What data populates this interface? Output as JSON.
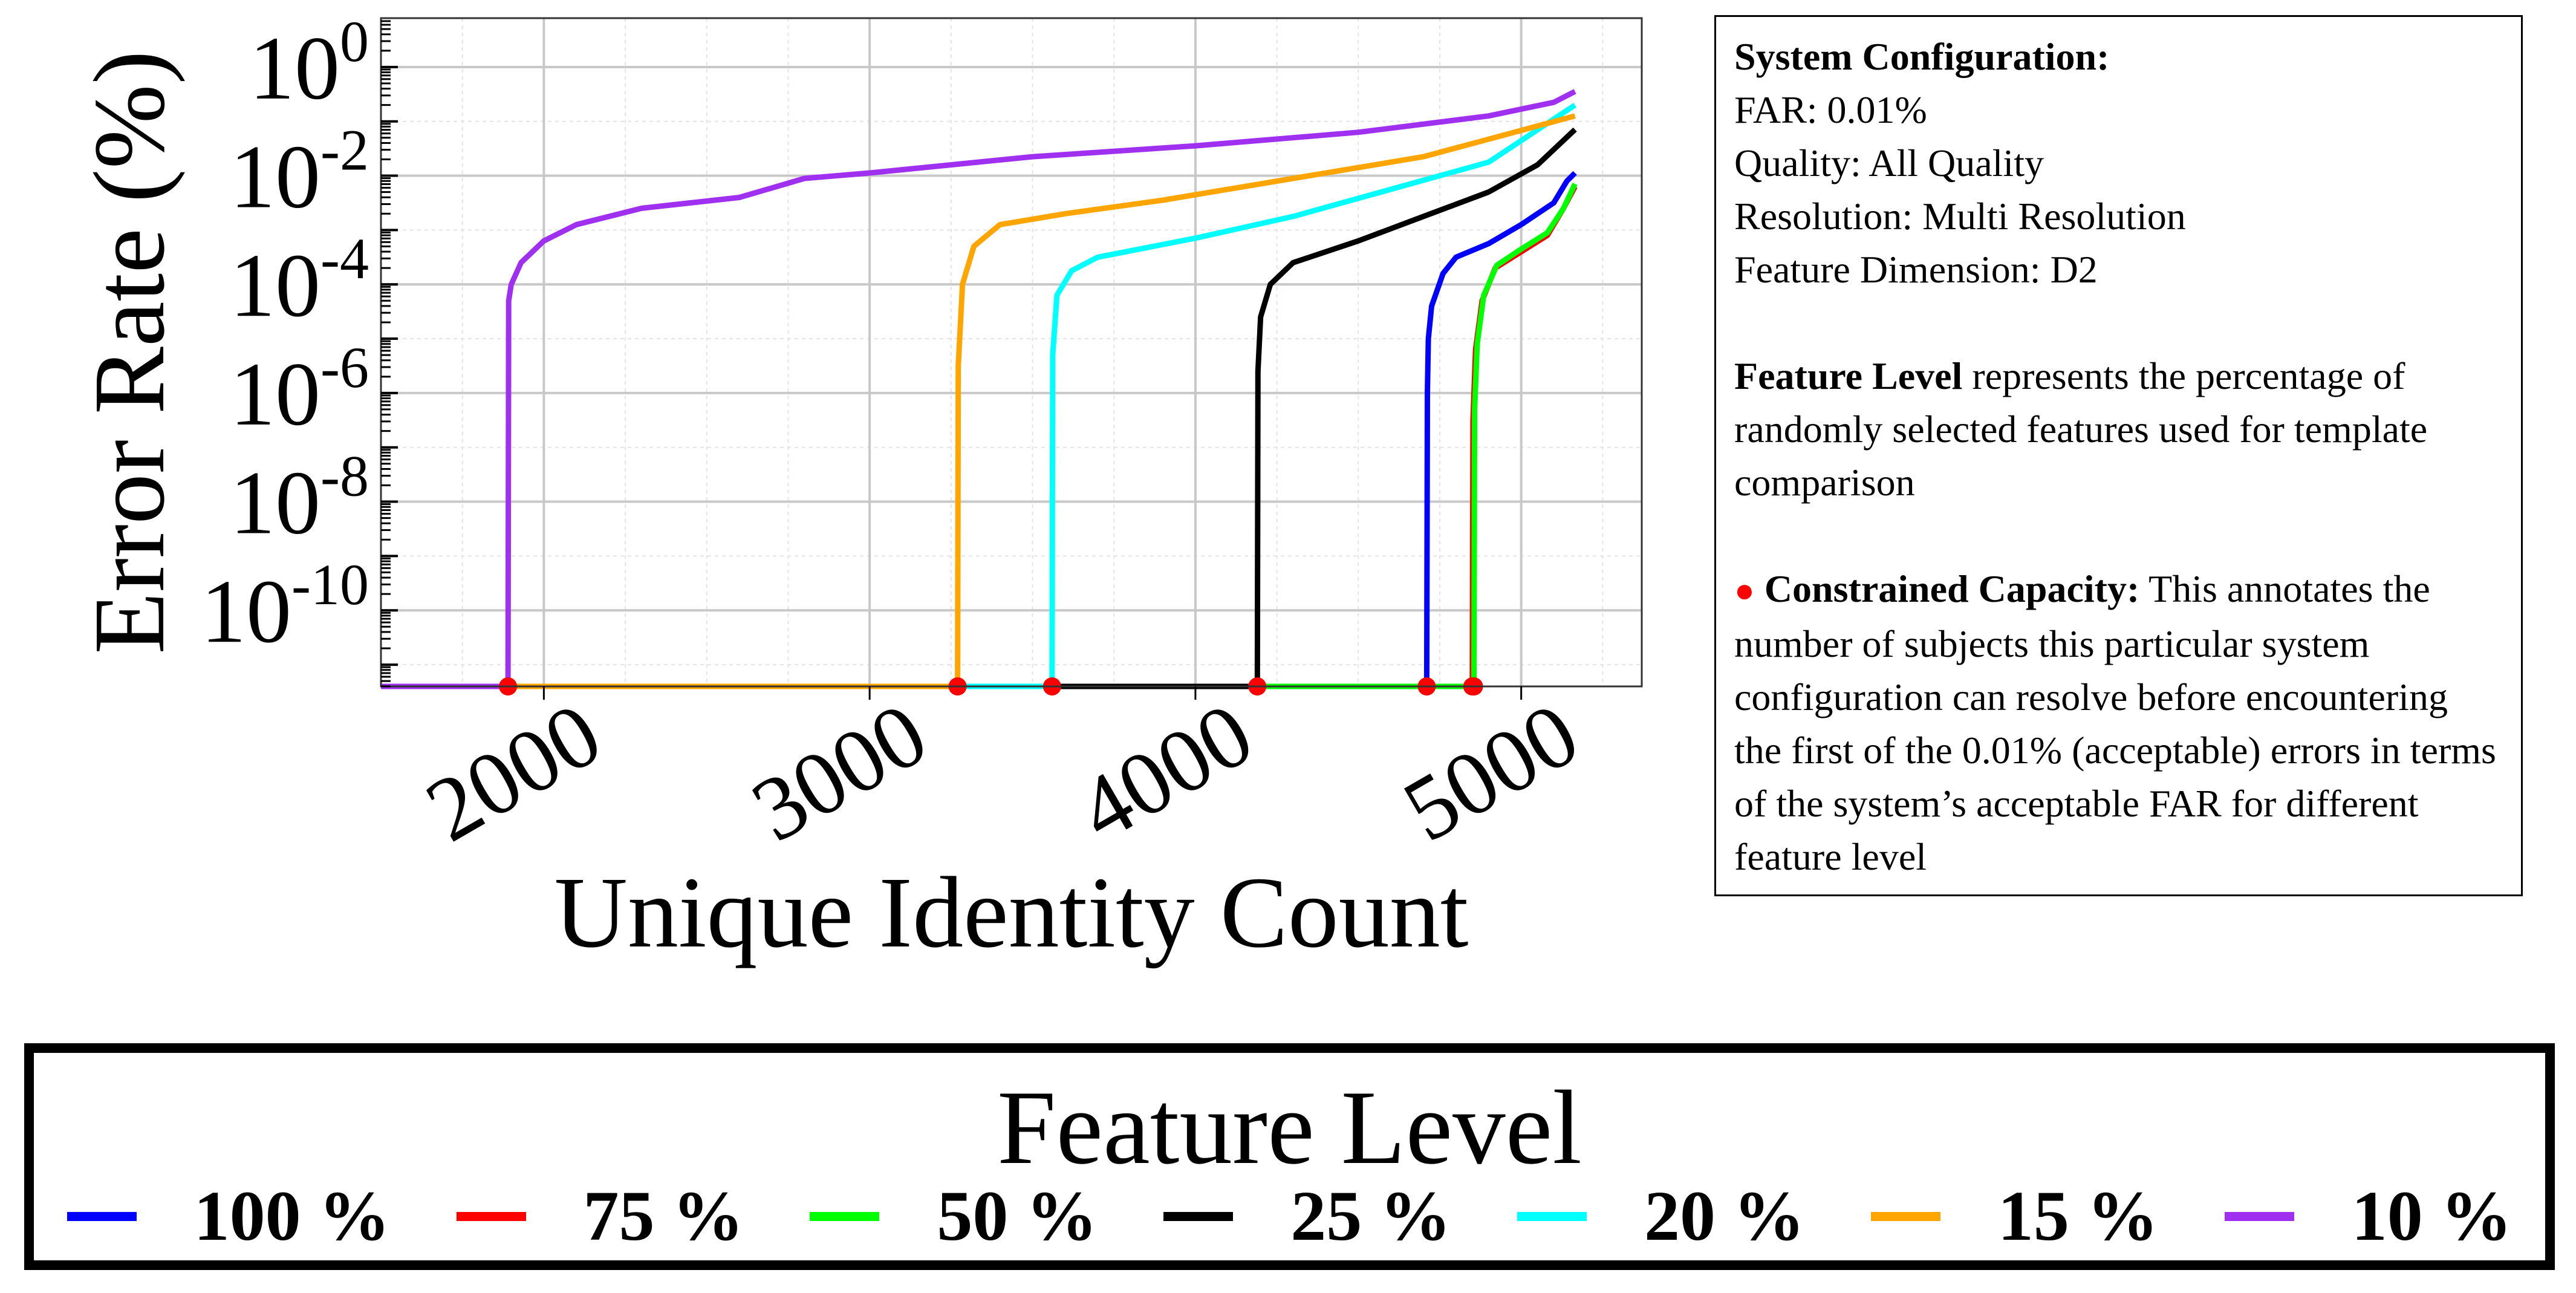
{
  "chart_data": {
    "type": "line",
    "xlabel": "Unique Identity Count",
    "ylabel": "Error Rate (%)",
    "xlim": [
      1500,
      5370
    ],
    "ylim_log10": [
      -11.4,
      0.9
    ],
    "yscale": "log",
    "grid": true,
    "x_ticks": [
      2000,
      3000,
      4000,
      5000
    ],
    "x_tick_labels": [
      "2000",
      "3000",
      "4000",
      "5000"
    ],
    "y_ticks": [
      {
        "base": "10",
        "exp": "0",
        "value": 0
      },
      {
        "base": "10",
        "exp": "-2",
        "value": -2
      },
      {
        "base": "10",
        "exp": "-4",
        "value": -4
      },
      {
        "base": "10",
        "exp": "-6",
        "value": -6
      },
      {
        "base": "10",
        "exp": "-8",
        "value": -8
      },
      {
        "base": "10",
        "exp": "-10",
        "value": -10
      }
    ],
    "baseline_log10": -11.4,
    "legend_title": "Feature Level",
    "legend_placement": "bottom",
    "series": [
      {
        "name": "100 %",
        "color": "#0000ff",
        "points": [
          [
            1500,
            -11.4
          ],
          [
            4710,
            -11.4
          ],
          [
            4712,
            -6
          ],
          [
            4715,
            -5
          ],
          [
            4725,
            -4.4
          ],
          [
            4760,
            -3.8
          ],
          [
            4800,
            -3.5
          ],
          [
            4900,
            -3.25
          ],
          [
            5000,
            -2.9
          ],
          [
            5100,
            -2.5
          ],
          [
            5140,
            -2.1
          ],
          [
            5165,
            -1.95
          ]
        ],
        "capacity_x": 4710
      },
      {
        "name": "75 %",
        "color": "#ff0000",
        "points": [
          [
            1500,
            -11.4
          ],
          [
            4850,
            -11.4
          ],
          [
            4852,
            -6.5
          ],
          [
            4860,
            -5.2
          ],
          [
            4880,
            -4.3
          ],
          [
            4920,
            -3.7
          ],
          [
            5000,
            -3.4
          ],
          [
            5080,
            -3.1
          ],
          [
            5130,
            -2.6
          ],
          [
            5165,
            -2.2
          ]
        ],
        "capacity_x": 4850
      },
      {
        "name": "50 %",
        "color": "#00ff00",
        "points": [
          [
            1500,
            -11.4
          ],
          [
            4855,
            -11.4
          ],
          [
            4857,
            -6.3
          ],
          [
            4865,
            -5.1
          ],
          [
            4885,
            -4.2
          ],
          [
            4925,
            -3.65
          ],
          [
            5000,
            -3.35
          ],
          [
            5080,
            -3.05
          ],
          [
            5130,
            -2.6
          ],
          [
            5165,
            -2.15
          ]
        ],
        "capacity_x": 4855
      },
      {
        "name": "25 %",
        "color": "#000000",
        "points": [
          [
            1500,
            -11.4
          ],
          [
            4190,
            -11.4
          ],
          [
            4192,
            -5.6
          ],
          [
            4200,
            -4.6
          ],
          [
            4230,
            -4.0
          ],
          [
            4300,
            -3.6
          ],
          [
            4500,
            -3.2
          ],
          [
            4700,
            -2.75
          ],
          [
            4900,
            -2.3
          ],
          [
            5050,
            -1.8
          ],
          [
            5165,
            -1.15
          ]
        ],
        "capacity_x": 4190
      },
      {
        "name": "20 %",
        "color": "#00ffff",
        "points": [
          [
            1500,
            -11.4
          ],
          [
            3560,
            -11.4
          ],
          [
            3562,
            -5.3
          ],
          [
            3575,
            -4.2
          ],
          [
            3620,
            -3.75
          ],
          [
            3700,
            -3.5
          ],
          [
            4000,
            -3.15
          ],
          [
            4300,
            -2.75
          ],
          [
            4600,
            -2.25
          ],
          [
            4900,
            -1.75
          ],
          [
            5165,
            -0.7
          ]
        ],
        "capacity_x": 3560
      },
      {
        "name": "15 %",
        "color": "#ffa500",
        "points": [
          [
            1500,
            -11.4
          ],
          [
            3270,
            -11.4
          ],
          [
            3272,
            -5.5
          ],
          [
            3285,
            -4.0
          ],
          [
            3320,
            -3.3
          ],
          [
            3400,
            -2.9
          ],
          [
            3600,
            -2.7
          ],
          [
            3900,
            -2.45
          ],
          [
            4300,
            -2.05
          ],
          [
            4700,
            -1.65
          ],
          [
            5165,
            -0.9
          ]
        ],
        "capacity_x": 3270
      },
      {
        "name": "10 %",
        "color": "#a030f0",
        "points": [
          [
            1500,
            -11.4
          ],
          [
            1890,
            -11.4
          ],
          [
            1892,
            -4.3
          ],
          [
            1900,
            -4.0
          ],
          [
            1930,
            -3.6
          ],
          [
            2000,
            -3.2
          ],
          [
            2100,
            -2.9
          ],
          [
            2300,
            -2.6
          ],
          [
            2600,
            -2.4
          ],
          [
            2800,
            -2.05
          ],
          [
            3000,
            -1.95
          ],
          [
            3500,
            -1.65
          ],
          [
            4000,
            -1.45
          ],
          [
            4500,
            -1.2
          ],
          [
            4900,
            -0.9
          ],
          [
            5100,
            -0.65
          ],
          [
            5165,
            -0.45
          ]
        ],
        "capacity_x": 1890
      }
    ]
  },
  "info": {
    "config_title": "System Configuration:",
    "far": "FAR: 0.01%",
    "quality": "Quality: All Quality",
    "resolution": "Resolution: Multi Resolution",
    "dimension": "Feature Dimension: D2",
    "feature_level_bold": "Feature Level",
    "feature_level_rest": " represents the percentage of randomly selected features used for template comparison",
    "capacity_dot": "●",
    "capacity_bold": "Constrained Capacity:",
    "capacity_rest": " This annotates the number of subjects this particular system configuration can resolve before encountering the first of the 0.01% (acceptable) errors in terms of the system’s acceptable FAR for different feature level"
  },
  "colors": {
    "capacity_marker": "#ff0000",
    "grid_major": "#c8c8c8",
    "grid_minor": "#e4e4e4"
  }
}
